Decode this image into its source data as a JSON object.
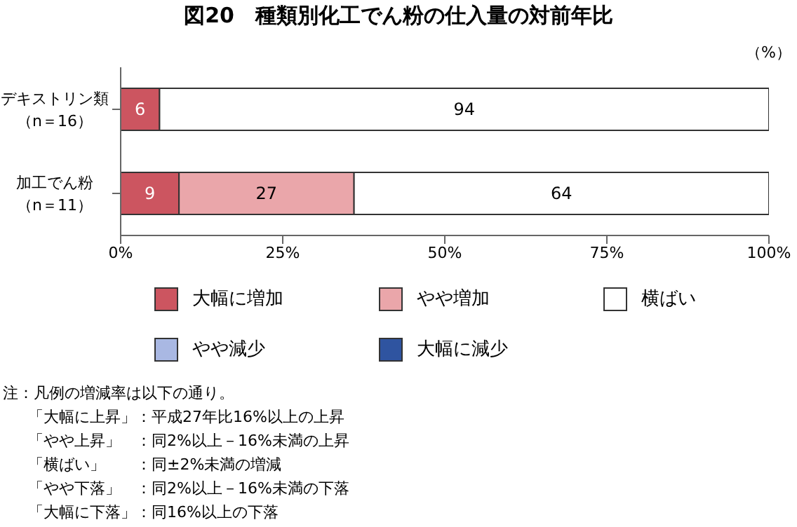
{
  "chart_data": {
    "type": "bar",
    "orientation": "horizontal",
    "stacked": true,
    "title": "図20　種類別化工でん粉の仕入量の対前年比",
    "categories": [
      "デキストリン類（n＝16）",
      "加工でん粉（n＝11）"
    ],
    "series": [
      {
        "name": "大幅に増加",
        "color": "#cc5560",
        "values": [
          6,
          9
        ]
      },
      {
        "name": "やや増加",
        "color": "#eaa6aa",
        "values": [
          null,
          27
        ]
      },
      {
        "name": "横ばい",
        "color": "#ffffff",
        "values": [
          94,
          64
        ]
      },
      {
        "name": "やや減少",
        "color": "#a9b8e3",
        "values": [
          null,
          null
        ]
      },
      {
        "name": "大幅に減少",
        "color": "#2f54a0",
        "values": [
          null,
          null
        ]
      }
    ],
    "xlim": [
      0,
      100
    ],
    "xticks": [
      {
        "value": 0,
        "label": "0%"
      },
      {
        "value": 25,
        "label": "25%"
      },
      {
        "value": 50,
        "label": "50%"
      },
      {
        "value": 75,
        "label": "75%"
      },
      {
        "value": 100,
        "label": "100%"
      }
    ],
    "data_labels": true,
    "legend": "bottom",
    "annotations": [
      "（%）",
      "注：凡例の増減率は以下の通り。",
      "「大幅に上昇」：平成27年比16%以上の上昇",
      "「やや上昇」　：同2%以上－16%未満の上昇",
      "「横ばい」　　：同±2%未満の増減",
      "「やや下落」　：同2%以上－16%未満の下落",
      "「大幅に下落」：同16%以上の下落"
    ]
  }
}
